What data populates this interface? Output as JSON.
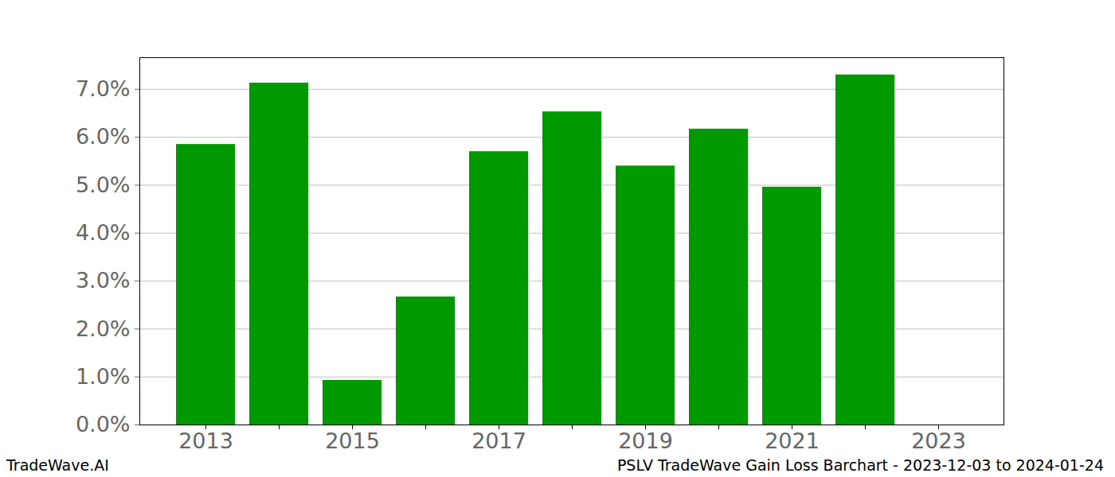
{
  "chart_data": {
    "type": "bar",
    "title": "PSLV TradeWave Gain Loss Barchart - 2023-12-03 to 2024-01-24",
    "annotations": [
      "TradeWave.AI"
    ],
    "categories": [
      "2013",
      null,
      "2015",
      null,
      "2017",
      null,
      "2019",
      null,
      "2021",
      null,
      "2023"
    ],
    "values": [
      5.85,
      7.13,
      0.93,
      2.67,
      5.7,
      6.53,
      5.4,
      6.17,
      4.96,
      7.3,
      null
    ],
    "color": "#009900",
    "ylim": [
      0,
      7.66
    ],
    "yticks": [
      {
        "value": 0,
        "label": "0.0%"
      },
      {
        "value": 1,
        "label": "1.0%"
      },
      {
        "value": 2,
        "label": "2.0%"
      },
      {
        "value": 3,
        "label": "3.0%"
      },
      {
        "value": 4,
        "label": "4.0%"
      },
      {
        "value": 5,
        "label": "5.0%"
      },
      {
        "value": 6,
        "label": "6.0%"
      },
      {
        "value": 7,
        "label": "7.0%"
      }
    ],
    "grid": true
  }
}
